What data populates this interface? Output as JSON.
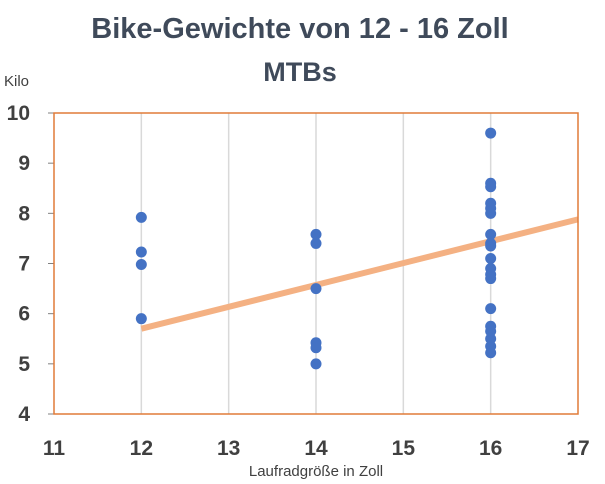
{
  "chart_data": {
    "type": "scatter",
    "title": "Bike-Gewichte von 12 - 16 Zoll",
    "subtitle": "MTBs",
    "xlabel": "Laufradgröße in Zoll",
    "ylabel": "Kilo",
    "xlim": [
      11,
      17
    ],
    "ylim": [
      4,
      10
    ],
    "xticks": [
      "11",
      "12",
      "13",
      "14",
      "15",
      "16",
      "17"
    ],
    "yticks": [
      "4",
      "5",
      "6",
      "7",
      "8",
      "9",
      "10"
    ],
    "grid": "vertical",
    "series": [
      {
        "points": [
          [
            12,
            7.92
          ],
          [
            12,
            7.23
          ],
          [
            12,
            6.98
          ],
          [
            12,
            5.9
          ],
          [
            14,
            7.58
          ],
          [
            14,
            7.4
          ],
          [
            14,
            6.5
          ],
          [
            14,
            5.42
          ],
          [
            14,
            5.32
          ],
          [
            14,
            5.0
          ],
          [
            16,
            9.6
          ],
          [
            16,
            8.6
          ],
          [
            16,
            8.53
          ],
          [
            16,
            8.2
          ],
          [
            16,
            8.1
          ],
          [
            16,
            8.0
          ],
          [
            16,
            7.58
          ],
          [
            16,
            7.4
          ],
          [
            16,
            7.35
          ],
          [
            16,
            7.1
          ],
          [
            16,
            6.9
          ],
          [
            16,
            6.78
          ],
          [
            16,
            6.7
          ],
          [
            16,
            6.1
          ],
          [
            16,
            5.75
          ],
          [
            16,
            5.65
          ],
          [
            16,
            5.5
          ],
          [
            16,
            5.35
          ],
          [
            16,
            5.22
          ]
        ]
      }
    ],
    "trendline": {
      "x": [
        12,
        17
      ],
      "y": [
        5.7,
        7.88
      ]
    },
    "colors": {
      "points": "#4472c4",
      "trendline": "#f4b183",
      "plot_border": "#e07b39",
      "gridline": "#d9d9d9"
    }
  }
}
